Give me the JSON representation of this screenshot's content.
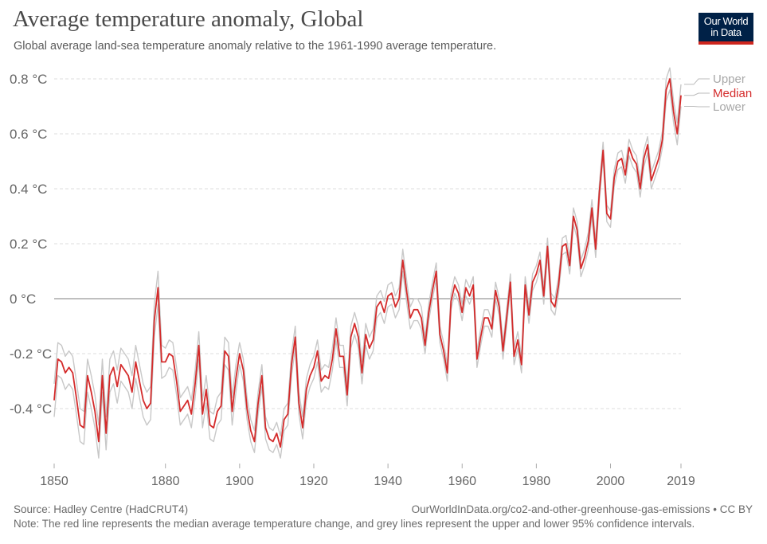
{
  "header": {
    "title": "Average temperature anomaly, Global",
    "subtitle": "Global average land-sea temperature anomaly relative to the 1961-1990 average temperature.",
    "logo": [
      "Our World",
      "in Data"
    ]
  },
  "footer": {
    "source": "Source: Hadley Centre (HadCRUT4)",
    "url": "OurWorldInData.org/co2-and-other-greenhouse-gas-emissions • CC BY",
    "note": "Note: The red line represents the median average temperature change, and grey lines represent the upper and lower 95% confidence intervals."
  },
  "colors": {
    "median": "#d42b2b",
    "bounds": "#c8c8c8",
    "grid": "#dddddd",
    "zero": "#999999",
    "logo_bg": "#002147",
    "logo_bar": "#ce261e"
  },
  "chart_data": {
    "type": "line",
    "title": "Average temperature anomaly, Global",
    "xlim": [
      1850,
      2019
    ],
    "ylim": [
      -0.6,
      0.8
    ],
    "grid": true,
    "legend": "right, line-end labels",
    "x_ticks": [
      "1850",
      "1880",
      "1900",
      "1920",
      "1940",
      "1960",
      "1980",
      "2000",
      "2019"
    ],
    "y_ticks": [
      {
        "v": 0.8,
        "label": "0.8 °C"
      },
      {
        "v": 0.6,
        "label": "0.6 °C"
      },
      {
        "v": 0.4,
        "label": "0.4 °C"
      },
      {
        "v": 0.2,
        "label": "0.2 °C"
      },
      {
        "v": 0,
        "label": "0 °C"
      },
      {
        "v": -0.2,
        "label": "-0.2 °C"
      },
      {
        "v": -0.4,
        "label": "-0.4 °C"
      }
    ],
    "x_start": 1850,
    "series": [
      {
        "name": "Upper",
        "color": "#c8c8c8",
        "values": [
          -0.31,
          -0.16,
          -0.17,
          -0.21,
          -0.19,
          -0.21,
          -0.3,
          -0.4,
          -0.41,
          -0.22,
          -0.28,
          -0.35,
          -0.46,
          -0.22,
          -0.43,
          -0.22,
          -0.19,
          -0.26,
          -0.18,
          -0.2,
          -0.22,
          -0.28,
          -0.17,
          -0.24,
          -0.31,
          -0.34,
          -0.32,
          -0.02,
          0.1,
          -0.17,
          -0.18,
          -0.15,
          -0.16,
          -0.25,
          -0.36,
          -0.34,
          -0.32,
          -0.37,
          -0.26,
          -0.12,
          -0.37,
          -0.28,
          -0.41,
          -0.42,
          -0.36,
          -0.34,
          -0.14,
          -0.16,
          -0.36,
          -0.24,
          -0.16,
          -0.22,
          -0.36,
          -0.44,
          -0.48,
          -0.34,
          -0.24,
          -0.43,
          -0.47,
          -0.48,
          -0.45,
          -0.5,
          -0.4,
          -0.38,
          -0.2,
          -0.1,
          -0.34,
          -0.43,
          -0.29,
          -0.24,
          -0.21,
          -0.15,
          -0.26,
          -0.24,
          -0.25,
          -0.18,
          -0.07,
          -0.17,
          -0.17,
          -0.31,
          -0.1,
          -0.05,
          -0.1,
          -0.23,
          -0.09,
          -0.14,
          -0.11,
          0.01,
          0.03,
          -0.01,
          0.05,
          0.06,
          0.01,
          0.04,
          0.18,
          0.07,
          -0.03,
          0.0,
          0.0,
          -0.03,
          -0.14,
          -0.02,
          0.06,
          0.13,
          -0.1,
          -0.16,
          -0.24,
          0.02,
          0.08,
          0.05,
          -0.02,
          0.07,
          0.04,
          0.08,
          -0.19,
          -0.11,
          -0.04,
          -0.04,
          -0.08,
          0.06,
          0.0,
          -0.16,
          -0.04,
          0.09,
          -0.18,
          -0.12,
          -0.21,
          0.08,
          -0.03,
          0.09,
          0.12,
          0.17,
          0.04,
          0.22,
          0.02,
          0.0,
          0.08,
          0.22,
          0.23,
          0.15,
          0.33,
          0.28,
          0.14,
          0.18,
          0.24,
          0.36,
          0.21,
          0.42,
          0.57,
          0.34,
          0.32,
          0.47,
          0.53,
          0.54,
          0.48,
          0.58,
          0.54,
          0.52,
          0.43,
          0.54,
          0.59,
          0.46,
          0.5,
          0.54,
          0.61,
          0.8,
          0.84,
          0.72,
          0.64,
          0.78
        ]
      },
      {
        "name": "Lower",
        "color": "#c8c8c8",
        "values": [
          -0.43,
          -0.28,
          -0.29,
          -0.33,
          -0.31,
          -0.33,
          -0.42,
          -0.52,
          -0.53,
          -0.34,
          -0.4,
          -0.47,
          -0.58,
          -0.34,
          -0.55,
          -0.34,
          -0.31,
          -0.38,
          -0.3,
          -0.32,
          -0.34,
          -0.4,
          -0.29,
          -0.36,
          -0.43,
          -0.46,
          -0.44,
          -0.14,
          -0.02,
          -0.29,
          -0.28,
          -0.25,
          -0.26,
          -0.35,
          -0.46,
          -0.44,
          -0.42,
          -0.47,
          -0.36,
          -0.22,
          -0.47,
          -0.38,
          -0.51,
          -0.52,
          -0.46,
          -0.44,
          -0.24,
          -0.26,
          -0.46,
          -0.34,
          -0.24,
          -0.3,
          -0.44,
          -0.52,
          -0.56,
          -0.42,
          -0.32,
          -0.51,
          -0.55,
          -0.56,
          -0.53,
          -0.58,
          -0.48,
          -0.46,
          -0.28,
          -0.18,
          -0.42,
          -0.51,
          -0.37,
          -0.32,
          -0.29,
          -0.23,
          -0.34,
          -0.32,
          -0.33,
          -0.26,
          -0.15,
          -0.25,
          -0.25,
          -0.39,
          -0.18,
          -0.13,
          -0.18,
          -0.31,
          -0.17,
          -0.22,
          -0.19,
          -0.07,
          -0.05,
          -0.09,
          -0.03,
          -0.02,
          -0.07,
          -0.04,
          0.1,
          -0.01,
          -0.11,
          -0.08,
          -0.08,
          -0.11,
          -0.2,
          -0.08,
          0.0,
          0.07,
          -0.16,
          -0.22,
          -0.3,
          -0.04,
          0.02,
          -0.01,
          -0.08,
          0.01,
          -0.02,
          0.02,
          -0.25,
          -0.17,
          -0.1,
          -0.1,
          -0.14,
          0.0,
          -0.06,
          -0.22,
          -0.1,
          0.03,
          -0.24,
          -0.18,
          -0.27,
          0.02,
          -0.09,
          0.03,
          0.06,
          0.11,
          -0.02,
          0.16,
          -0.04,
          -0.06,
          0.02,
          0.16,
          0.17,
          0.09,
          0.27,
          0.22,
          0.08,
          0.12,
          0.18,
          0.3,
          0.15,
          0.36,
          0.51,
          0.28,
          0.26,
          0.41,
          0.47,
          0.48,
          0.42,
          0.52,
          0.48,
          0.46,
          0.37,
          0.48,
          0.53,
          0.4,
          0.44,
          0.48,
          0.55,
          0.72,
          0.76,
          0.64,
          0.56,
          0.7
        ]
      },
      {
        "name": "Median",
        "color": "#d42b2b",
        "values": [
          -0.37,
          -0.22,
          -0.23,
          -0.27,
          -0.25,
          -0.27,
          -0.36,
          -0.46,
          -0.47,
          -0.28,
          -0.34,
          -0.41,
          -0.52,
          -0.28,
          -0.49,
          -0.28,
          -0.25,
          -0.32,
          -0.24,
          -0.26,
          -0.28,
          -0.34,
          -0.23,
          -0.3,
          -0.37,
          -0.4,
          -0.38,
          -0.08,
          0.04,
          -0.23,
          -0.23,
          -0.2,
          -0.21,
          -0.3,
          -0.41,
          -0.39,
          -0.37,
          -0.42,
          -0.31,
          -0.17,
          -0.42,
          -0.33,
          -0.46,
          -0.47,
          -0.41,
          -0.39,
          -0.19,
          -0.21,
          -0.41,
          -0.29,
          -0.2,
          -0.26,
          -0.4,
          -0.48,
          -0.52,
          -0.38,
          -0.28,
          -0.47,
          -0.51,
          -0.52,
          -0.49,
          -0.54,
          -0.44,
          -0.42,
          -0.24,
          -0.14,
          -0.38,
          -0.47,
          -0.33,
          -0.28,
          -0.25,
          -0.19,
          -0.3,
          -0.28,
          -0.29,
          -0.22,
          -0.11,
          -0.21,
          -0.21,
          -0.35,
          -0.14,
          -0.09,
          -0.14,
          -0.27,
          -0.13,
          -0.18,
          -0.15,
          -0.03,
          -0.01,
          -0.05,
          0.01,
          0.02,
          -0.03,
          0.0,
          0.14,
          0.03,
          -0.07,
          -0.04,
          -0.04,
          -0.07,
          -0.17,
          -0.05,
          0.03,
          0.1,
          -0.13,
          -0.19,
          -0.27,
          -0.01,
          0.05,
          0.02,
          -0.05,
          0.04,
          0.01,
          0.05,
          -0.22,
          -0.14,
          -0.07,
          -0.07,
          -0.11,
          0.03,
          -0.03,
          -0.19,
          -0.07,
          0.06,
          -0.21,
          -0.15,
          -0.24,
          0.05,
          -0.06,
          0.06,
          0.09,
          0.14,
          0.01,
          0.19,
          -0.01,
          -0.03,
          0.05,
          0.19,
          0.2,
          0.12,
          0.3,
          0.25,
          0.11,
          0.15,
          0.21,
          0.33,
          0.18,
          0.39,
          0.54,
          0.31,
          0.29,
          0.44,
          0.5,
          0.51,
          0.45,
          0.55,
          0.51,
          0.49,
          0.4,
          0.51,
          0.56,
          0.43,
          0.47,
          0.51,
          0.58,
          0.76,
          0.8,
          0.68,
          0.6,
          0.74
        ]
      }
    ]
  }
}
